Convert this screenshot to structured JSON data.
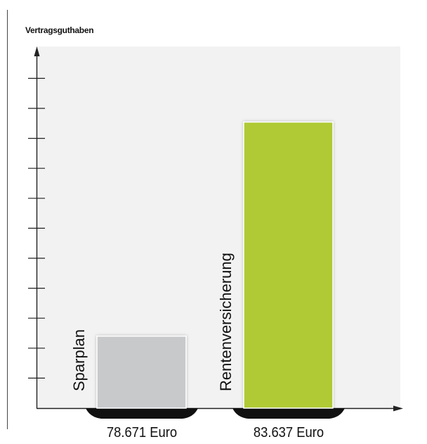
{
  "chart_data": {
    "type": "bar",
    "ylabel": "Vertragsguthaben",
    "categories": [
      "Sparplan",
      "Rentenversicherung"
    ],
    "values": [
      78671,
      83637
    ],
    "value_labels": [
      "78.671 Euro",
      "83.637 Euro"
    ],
    "colors": [
      "#c8c9cb",
      "#afca35"
    ],
    "grid": false
  }
}
